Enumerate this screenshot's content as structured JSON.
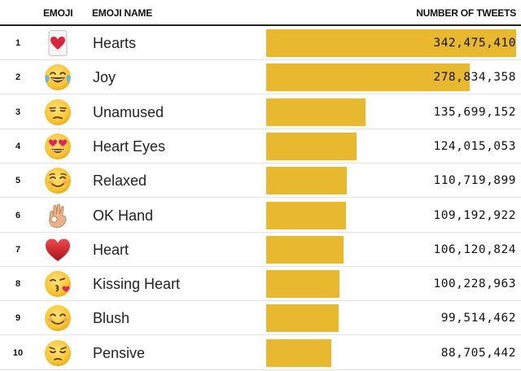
{
  "header": {
    "emoji": "EMOJI",
    "emoji_name": "EMOJI NAME",
    "number_of_tweets": "NUMBER OF TWEETS"
  },
  "chart_data": {
    "type": "bar",
    "title": "",
    "xlabel": "NUMBER OF TWEETS",
    "ylabel": "",
    "xlim": [
      0,
      342475410
    ],
    "grid": false,
    "rows": [
      {
        "rank": "1",
        "emoji_icon": "hearts-card-icon",
        "name": "Hearts",
        "value": 342475410,
        "label": "342,475,410"
      },
      {
        "rank": "2",
        "emoji_icon": "joy-face-icon",
        "name": "Joy",
        "value": 278834358,
        "label": "278,834,358"
      },
      {
        "rank": "3",
        "emoji_icon": "unamused-face-icon",
        "name": "Unamused",
        "value": 135699152,
        "label": "135,699,152"
      },
      {
        "rank": "4",
        "emoji_icon": "heart-eyes-face-icon",
        "name": "Heart Eyes",
        "value": 124015053,
        "label": "124,015,053"
      },
      {
        "rank": "5",
        "emoji_icon": "relaxed-face-icon",
        "name": "Relaxed",
        "value": 110719899,
        "label": "110,719,899"
      },
      {
        "rank": "6",
        "emoji_icon": "ok-hand-icon",
        "name": "OK Hand",
        "value": 109192922,
        "label": "109,192,922"
      },
      {
        "rank": "7",
        "emoji_icon": "red-heart-icon",
        "name": "Heart",
        "value": 106120824,
        "label": "106,120,824"
      },
      {
        "rank": "8",
        "emoji_icon": "kissing-heart-face-icon",
        "name": "Kissing Heart",
        "value": 100228963,
        "label": "100,228,963"
      },
      {
        "rank": "9",
        "emoji_icon": "blush-face-icon",
        "name": "Blush",
        "value": 99514462,
        "label": "99,514,462"
      },
      {
        "rank": "10",
        "emoji_icon": "pensive-face-icon",
        "name": "Pensive",
        "value": 88705442,
        "label": "88,705,442"
      }
    ]
  },
  "colors": {
    "bar": "#e8b92e",
    "text": "#222222",
    "rule": "#222222",
    "row_divider": "#e2e2e2"
  }
}
